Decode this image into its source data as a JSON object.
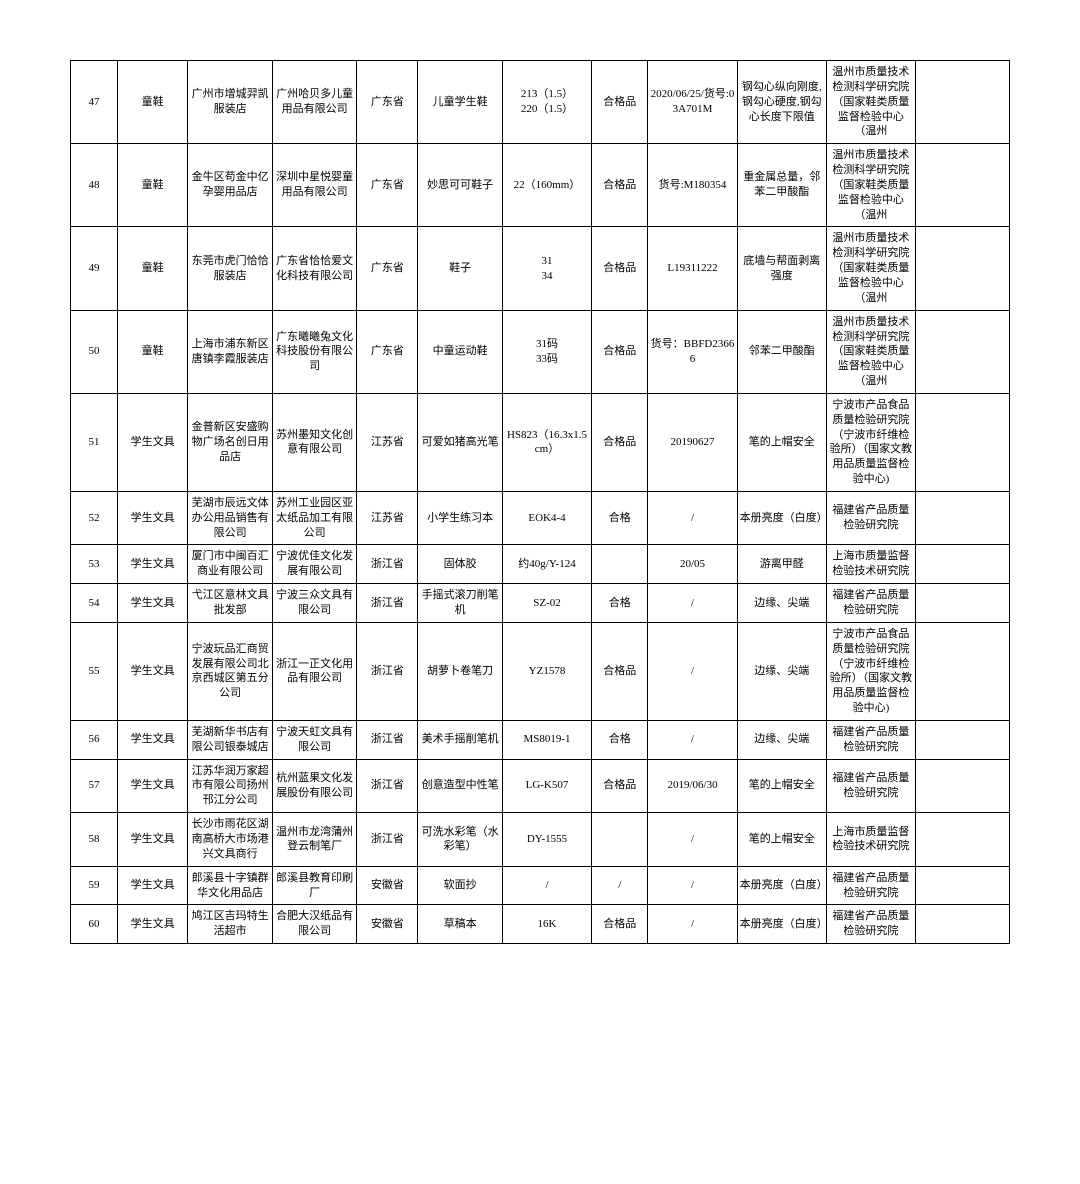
{
  "rows": [
    {
      "num": "47",
      "category": "童鞋",
      "vendor": "广州市增城羿凯服装店",
      "manufacturer": "广州哈贝多儿童用品有限公司",
      "province": "广东省",
      "product": "儿童学生鞋",
      "spec": "213（1.5）\n220（1.5）",
      "grade": "合格品",
      "batch": "2020/06/25/货号:03A701M",
      "issue": "钢勾心纵向刚度,钢勾心硬度,钢勾心长度下限值",
      "agency": "温州市质量技术检测科学研究院（国家鞋类质量监督检验中心（温州",
      "remark": ""
    },
    {
      "num": "48",
      "category": "童鞋",
      "vendor": "金牛区苟金中亿孕婴用品店",
      "manufacturer": "深圳中星悦婴童用品有限公司",
      "province": "广东省",
      "product": "妙思可可鞋子",
      "spec": "22（160mm）",
      "grade": "合格品",
      "batch": "货号:M180354",
      "issue": "重金属总量，邻苯二甲酸酯",
      "agency": "温州市质量技术检测科学研究院（国家鞋类质量监督检验中心（温州",
      "remark": ""
    },
    {
      "num": "49",
      "category": "童鞋",
      "vendor": "东莞市虎门恰恰服装店",
      "manufacturer": "广东省恰恰爱文化科技有限公司",
      "province": "广东省",
      "product": "鞋子",
      "spec": "31\n34",
      "grade": "合格品",
      "batch": "L19311222",
      "issue": "底墙与帮面剥离强度",
      "agency": "温州市质量技术检测科学研究院（国家鞋类质量监督检验中心（温州",
      "remark": ""
    },
    {
      "num": "50",
      "category": "童鞋",
      "vendor": "上海市浦东新区唐镇李霞服装店",
      "manufacturer": "广东曦曦兔文化科技股份有限公司",
      "province": "广东省",
      "product": "中童运动鞋",
      "spec": "31码\n33码",
      "grade": "合格品",
      "batch": "货号：BBFD23666",
      "issue": "邻苯二甲酸酯",
      "agency": "温州市质量技术检测科学研究院（国家鞋类质量监督检验中心（温州",
      "remark": ""
    },
    {
      "num": "51",
      "category": "学生文具",
      "vendor": "金普新区安盛购物广场名创日用品店",
      "manufacturer": "苏州墨知文化创意有限公司",
      "province": "江苏省",
      "product": "可爱如猪高光笔",
      "spec": "HS823（16.3x1.5cm）",
      "grade": "合格品",
      "batch": "20190627",
      "issue": "笔的上帽安全",
      "agency": "宁波市产品食品质量检验研究院（宁波市纤维检验所）（国家文教用品质量监督检验中心)",
      "remark": ""
    },
    {
      "num": "52",
      "category": "学生文具",
      "vendor": "芜湖市辰远文体办公用品销售有限公司",
      "manufacturer": "苏州工业园区亚太纸品加工有限公司",
      "province": "江苏省",
      "product": "小学生练习本",
      "spec": "EOK4-4",
      "grade": "合格",
      "batch": "/",
      "issue": "本册亮度（白度）",
      "agency": "福建省产品质量检验研究院",
      "remark": ""
    },
    {
      "num": "53",
      "category": "学生文具",
      "vendor": "厦门市中闽百汇商业有限公司",
      "manufacturer": "宁波优佳文化发展有限公司",
      "province": "浙江省",
      "product": "固体胶",
      "spec": "约40g/Y-124",
      "grade": "",
      "batch": "20/05",
      "issue": "游离甲醛",
      "agency": "上海市质量监督检验技术研究院",
      "remark": ""
    },
    {
      "num": "54",
      "category": "学生文具",
      "vendor": "弋江区意林文具批发部",
      "manufacturer": "宁波三众文具有限公司",
      "province": "浙江省",
      "product": "手摇式滚刀削笔机",
      "spec": "SZ-02",
      "grade": "合格",
      "batch": "/",
      "issue": "边缘、尖端",
      "agency": "福建省产品质量检验研究院",
      "remark": ""
    },
    {
      "num": "55",
      "category": "学生文具",
      "vendor": "宁波玩品汇商贸发展有限公司北京西城区第五分公司",
      "manufacturer": "浙江一正文化用品有限公司",
      "province": "浙江省",
      "product": "胡萝卜卷笔刀",
      "spec": "YZ1578",
      "grade": "合格品",
      "batch": "/",
      "issue": "边缘、尖端",
      "agency": "宁波市产品食品质量检验研究院（宁波市纤维检验所）（国家文教用品质量监督检验中心)",
      "remark": ""
    },
    {
      "num": "56",
      "category": "学生文具",
      "vendor": "芜湖新华书店有限公司银泰城店",
      "manufacturer": "宁波天虹文具有限公司",
      "province": "浙江省",
      "product": "美术手摇削笔机",
      "spec": "MS8019-1",
      "grade": "合格",
      "batch": "/",
      "issue": "边缘、尖端",
      "agency": "福建省产品质量检验研究院",
      "remark": ""
    },
    {
      "num": "57",
      "category": "学生文具",
      "vendor": "江苏华润万家超市有限公司扬州邗江分公司",
      "manufacturer": "杭州蓝果文化发展股份有限公司",
      "province": "浙江省",
      "product": "创意造型中性笔",
      "spec": "LG-K507",
      "grade": "合格品",
      "batch": "2019/06/30",
      "issue": "笔的上帽安全",
      "agency": "福建省产品质量检验研究院",
      "remark": ""
    },
    {
      "num": "58",
      "category": "学生文具",
      "vendor": "长沙市雨花区湖南高桥大市场港兴文具商行",
      "manufacturer": "温州市龙湾蒲州登云制笔厂",
      "province": "浙江省",
      "product": "可洗水彩笔（水彩笔）",
      "spec": "DY-1555",
      "grade": "",
      "batch": "/",
      "issue": "笔的上帽安全",
      "agency": "上海市质量监督检验技术研究院",
      "remark": ""
    },
    {
      "num": "59",
      "category": "学生文具",
      "vendor": "郎溪县十字镇群华文化用品店",
      "manufacturer": "郎溪县教育印刷厂",
      "province": "安徽省",
      "product": "软面抄",
      "spec": "/",
      "grade": "/",
      "batch": "/",
      "issue": "本册亮度（白度）",
      "agency": "福建省产品质量检验研究院",
      "remark": ""
    },
    {
      "num": "60",
      "category": "学生文具",
      "vendor": "鸠江区吉玛特生活超市",
      "manufacturer": "合肥大汉纸品有限公司",
      "province": "安徽省",
      "product": "草稿本",
      "spec": "16K",
      "grade": "合格品",
      "batch": "/",
      "issue": "本册亮度（白度）",
      "agency": "福建省产品质量检验研究院",
      "remark": ""
    }
  ]
}
